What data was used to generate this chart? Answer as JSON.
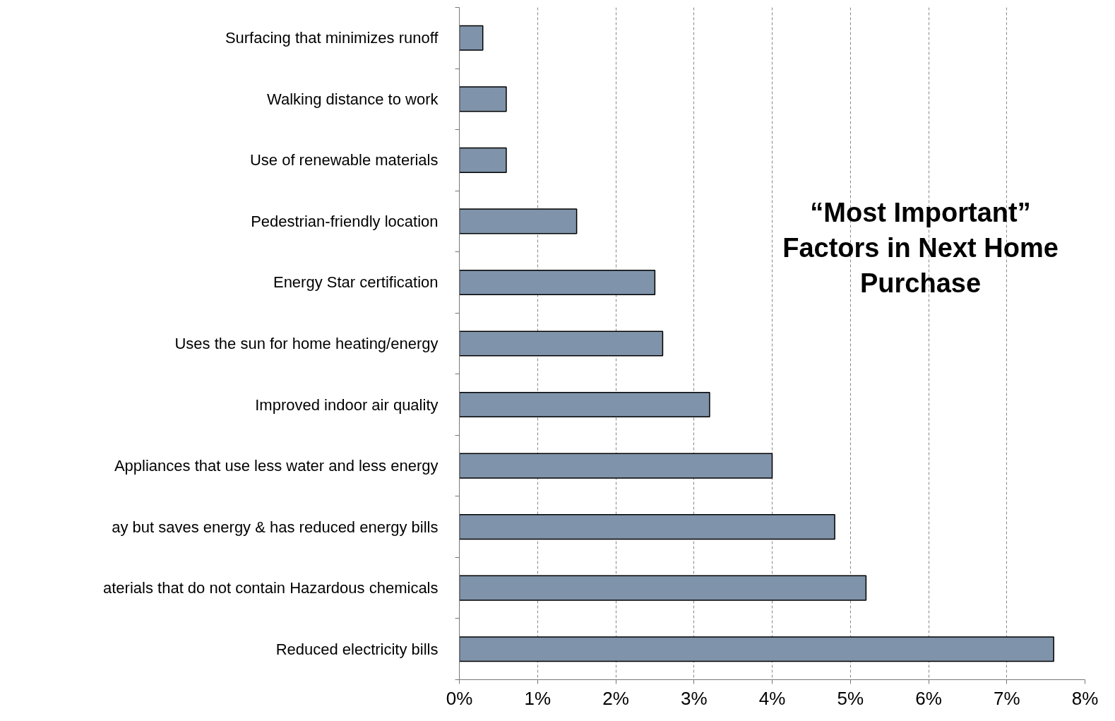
{
  "chart_data": {
    "type": "bar",
    "orientation": "horizontal",
    "title": "“Most Important” Factors in Next Home Purchase",
    "categories": [
      "Surfacing that minimizes runoff",
      "Walking distance to work",
      "Use of renewable materials",
      "Pedestrian-friendly location",
      "Energy Star certification",
      "Uses the sun for home heating/energy",
      "Improved indoor air quality",
      "Appliances that use less water and less energy",
      "ay but saves energy & has reduced energy bills",
      "aterials that do not contain Hazardous chemicals",
      "Reduced electricity bills"
    ],
    "values": [
      0.3,
      0.6,
      0.6,
      1.5,
      2.5,
      2.6,
      3.2,
      4.0,
      4.8,
      5.2,
      7.6
    ],
    "color": "#7f93aa",
    "xlim": [
      0,
      8
    ],
    "xticks": [
      {
        "value": 0,
        "label": "0%"
      },
      {
        "value": 1,
        "label": "1%"
      },
      {
        "value": 2,
        "label": "2%"
      },
      {
        "value": 3,
        "label": "3%"
      },
      {
        "value": 4,
        "label": "4%"
      },
      {
        "value": 5,
        "label": "5%"
      },
      {
        "value": 6,
        "label": "6%"
      },
      {
        "value": 7,
        "label": "7%"
      },
      {
        "value": 8,
        "label": "8%"
      }
    ],
    "grid": "x"
  }
}
